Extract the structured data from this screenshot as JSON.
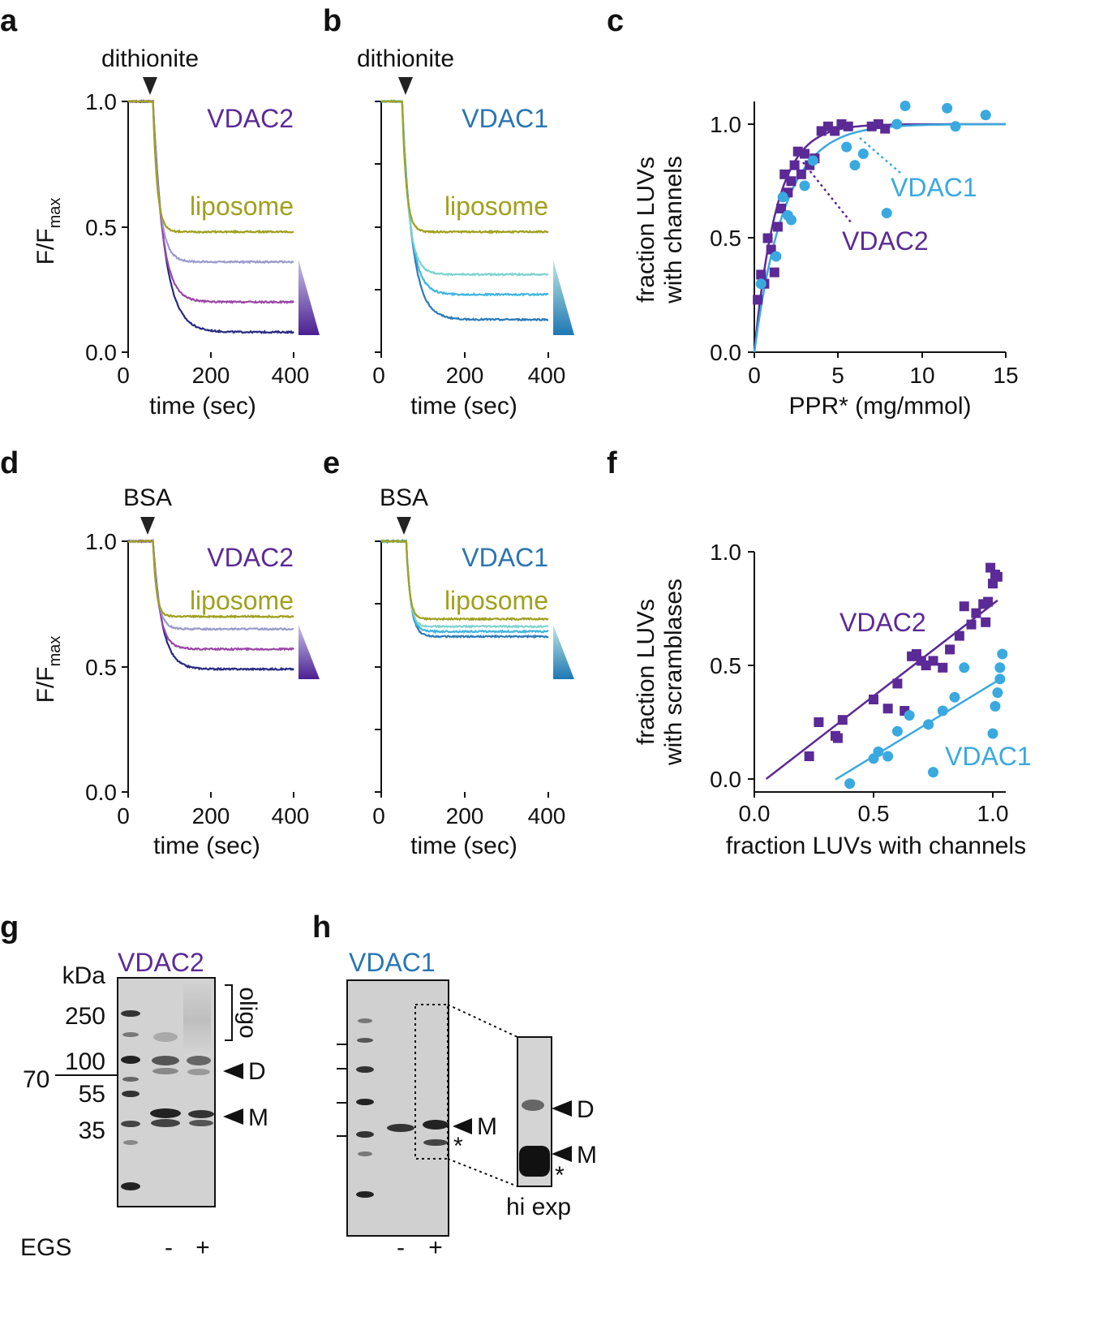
{
  "colors": {
    "vdac2": "#5b2a96",
    "vdac1": "#3aa9e0",
    "vdac1_text": "#2a75b3",
    "liposome": "#a0a01e",
    "vdac2_light": "#9a9acc",
    "vdac2_mid": "#9a45a6",
    "vdac2_dark": "#272a80",
    "vdac1_light": "#7fd3cf",
    "vdac1_mid": "#3fb5e0",
    "vdac1_dark": "#2a7ab8"
  },
  "panels": {
    "a": {
      "label": "a",
      "trigger": "dithionite",
      "protein": "VDAC2",
      "liposome": "liposome",
      "ylabel": "F/F",
      "ylabel_sub": "max",
      "xlabel": "time (sec)",
      "yticks": [
        "0.0",
        "0.5",
        "1.0"
      ],
      "xticks": [
        "0",
        "200",
        "400"
      ]
    },
    "b": {
      "label": "b",
      "trigger": "dithionite",
      "protein": "VDAC1",
      "liposome": "liposome",
      "xlabel": "time (sec)",
      "xticks": [
        "0",
        "200",
        "400"
      ]
    },
    "c": {
      "label": "c",
      "ylabel1": "fraction LUVs",
      "ylabel2": "with channels",
      "xlabel": "PPR* (mg/mmol)",
      "yticks": [
        "0.0",
        "0.5",
        "1.0"
      ],
      "xticks": [
        "0",
        "5",
        "10",
        "15"
      ],
      "vdac1": "VDAC1",
      "vdac2": "VDAC2"
    },
    "d": {
      "label": "d",
      "trigger": "BSA",
      "protein": "VDAC2",
      "liposome": "liposome",
      "ylabel": "F/F",
      "ylabel_sub": "max",
      "xlabel": "time (sec)",
      "yticks": [
        "0.0",
        "0.5",
        "1.0"
      ],
      "xticks": [
        "0",
        "200",
        "400"
      ]
    },
    "e": {
      "label": "e",
      "trigger": "BSA",
      "protein": "VDAC1",
      "liposome": "liposome",
      "xlabel": "time (sec)",
      "xticks": [
        "0",
        "200",
        "400"
      ]
    },
    "f": {
      "label": "f",
      "ylabel1": "fraction LUVs",
      "ylabel2": "with scramblases",
      "xlabel": "fraction LUVs with channels",
      "yticks": [
        "0.0",
        "0.5",
        "1.0"
      ],
      "xticks": [
        "0.0",
        "0.5",
        "1.0"
      ],
      "vdac2": "VDAC2",
      "vdac1": "VDAC1"
    },
    "g": {
      "label": "g",
      "protein": "VDAC2",
      "kda": "kDa",
      "markers": [
        "250",
        "100",
        "55",
        "35"
      ],
      "marker70": "70",
      "oligo": "oligo",
      "D": "D",
      "M": "M",
      "egs": "EGS",
      "lanes": [
        "-",
        "+"
      ]
    },
    "h": {
      "label": "h",
      "protein": "VDAC1",
      "M": "M",
      "D": "D",
      "star": "*",
      "hiexp": "hi exp",
      "lanes": [
        "-",
        "+"
      ]
    }
  },
  "chart_data": [
    {
      "id": "a",
      "type": "line",
      "title": "VDAC2 dithionite",
      "xlabel": "time (sec)",
      "ylabel": "F/Fmax",
      "xlim": [
        0,
        400
      ],
      "ylim": [
        0,
        1.0
      ],
      "addition_time_sec": 60,
      "series": [
        {
          "name": "liposome",
          "plateau": 0.48,
          "tau_sec": 10
        },
        {
          "name": "VDAC2 low",
          "plateau": 0.36,
          "tau_sec": 16
        },
        {
          "name": "VDAC2 mid",
          "plateau": 0.2,
          "tau_sec": 22
        },
        {
          "name": "VDAC2 high",
          "plateau": 0.08,
          "tau_sec": 28
        }
      ]
    },
    {
      "id": "b",
      "type": "line",
      "title": "VDAC1 dithionite",
      "xlabel": "time (sec)",
      "ylabel": "F/Fmax",
      "xlim": [
        0,
        400
      ],
      "ylim": [
        0,
        1.0
      ],
      "addition_time_sec": 50,
      "series": [
        {
          "name": "liposome",
          "plateau": 0.48,
          "tau_sec": 10
        },
        {
          "name": "VDAC1 low",
          "plateau": 0.31,
          "tau_sec": 16
        },
        {
          "name": "VDAC1 mid",
          "plateau": 0.23,
          "tau_sec": 20
        },
        {
          "name": "VDAC1 high",
          "plateau": 0.13,
          "tau_sec": 24
        }
      ]
    },
    {
      "id": "c",
      "type": "scatter",
      "xlabel": "PPR* (mg/mmol)",
      "ylabel": "fraction LUVs with channels",
      "xlim": [
        0,
        15
      ],
      "ylim": [
        0,
        1.1
      ],
      "series": [
        {
          "name": "VDAC2",
          "marker": "square",
          "fit_k": 0.75,
          "x": [
            0.2,
            0.4,
            0.6,
            0.8,
            1.0,
            1.2,
            1.4,
            1.6,
            1.8,
            2.0,
            2.2,
            2.4,
            2.6,
            2.8,
            3.0,
            3.3,
            3.6,
            4.0,
            4.4,
            4.8,
            5.2,
            5.6,
            7.0,
            7.4,
            7.8
          ],
          "y": [
            0.23,
            0.34,
            0.3,
            0.5,
            0.45,
            0.35,
            0.55,
            0.63,
            0.78,
            0.7,
            0.75,
            0.82,
            0.88,
            0.78,
            0.87,
            0.82,
            0.85,
            0.97,
            0.99,
            0.97,
            1.0,
            0.99,
            0.99,
            1.0,
            0.98
          ]
        },
        {
          "name": "VDAC1",
          "marker": "circle",
          "fit_k": 0.55,
          "x": [
            0.4,
            1.3,
            1.7,
            2.0,
            2.2,
            3.0,
            3.5,
            5.5,
            6.0,
            6.5,
            7.9,
            8.5,
            9.0,
            11.5,
            12.0,
            13.8
          ],
          "y": [
            0.3,
            0.42,
            0.68,
            0.6,
            0.58,
            0.73,
            0.84,
            0.9,
            0.82,
            0.87,
            0.61,
            1.0,
            1.08,
            1.07,
            0.99,
            1.04
          ]
        }
      ]
    },
    {
      "id": "d",
      "type": "line",
      "title": "VDAC2 BSA",
      "xlabel": "time (sec)",
      "ylabel": "F/Fmax",
      "xlim": [
        0,
        400
      ],
      "ylim": [
        0,
        1.0
      ],
      "addition_time_sec": 60,
      "series": [
        {
          "name": "liposome",
          "plateau": 0.7,
          "tau_sec": 8
        },
        {
          "name": "VDAC2 low",
          "plateau": 0.65,
          "tau_sec": 12
        },
        {
          "name": "VDAC2 mid",
          "plateau": 0.57,
          "tau_sec": 16
        },
        {
          "name": "VDAC2 high",
          "plateau": 0.49,
          "tau_sec": 22
        }
      ]
    },
    {
      "id": "e",
      "type": "line",
      "title": "VDAC1 BSA",
      "xlabel": "time (sec)",
      "ylabel": "F/Fmax",
      "xlim": [
        0,
        400
      ],
      "ylim": [
        0,
        1.0
      ],
      "addition_time_sec": 60,
      "series": [
        {
          "name": "liposome",
          "plateau": 0.69,
          "tau_sec": 8
        },
        {
          "name": "VDAC1 low",
          "plateau": 0.66,
          "tau_sec": 9
        },
        {
          "name": "VDAC1 mid",
          "plateau": 0.64,
          "tau_sec": 10
        },
        {
          "name": "VDAC1 high",
          "plateau": 0.62,
          "tau_sec": 11
        }
      ]
    },
    {
      "id": "f",
      "type": "scatter",
      "xlabel": "fraction LUVs with channels",
      "ylabel": "fraction LUVs with scramblases",
      "xlim": [
        0,
        1.05
      ],
      "ylim": [
        0,
        1.0
      ],
      "series": [
        {
          "name": "VDAC2",
          "marker": "square",
          "fit": {
            "slope": 0.81,
            "intercept": -0.04,
            "x0": 0.05,
            "x1": 1.02
          },
          "x": [
            0.23,
            0.27,
            0.34,
            0.35,
            0.37,
            0.5,
            0.56,
            0.6,
            0.63,
            0.66,
            0.68,
            0.7,
            0.72,
            0.75,
            0.79,
            0.82,
            0.86,
            0.88,
            0.91,
            0.93,
            0.96,
            0.97,
            0.98,
            0.99,
            1.0,
            1.01,
            1.02
          ],
          "y": [
            0.1,
            0.25,
            0.19,
            0.18,
            0.26,
            0.35,
            0.31,
            0.42,
            0.3,
            0.54,
            0.55,
            0.52,
            0.5,
            0.52,
            0.49,
            0.57,
            0.63,
            0.76,
            0.68,
            0.73,
            0.77,
            0.69,
            0.78,
            0.93,
            0.86,
            0.9,
            0.89
          ]
        },
        {
          "name": "VDAC1",
          "marker": "circle",
          "fit": {
            "slope": 0.64,
            "intercept": -0.22,
            "x0": 0.34,
            "x1": 1.02
          },
          "x": [
            0.4,
            0.5,
            0.52,
            0.56,
            0.6,
            0.65,
            0.73,
            0.75,
            0.79,
            0.84,
            0.88,
            1.0,
            1.01,
            1.02,
            1.03,
            1.03,
            1.04
          ],
          "y": [
            -0.02,
            0.09,
            0.12,
            0.1,
            0.21,
            0.28,
            0.24,
            0.03,
            0.3,
            0.36,
            0.49,
            0.2,
            0.32,
            0.38,
            0.44,
            0.49,
            0.55
          ]
        }
      ]
    }
  ]
}
